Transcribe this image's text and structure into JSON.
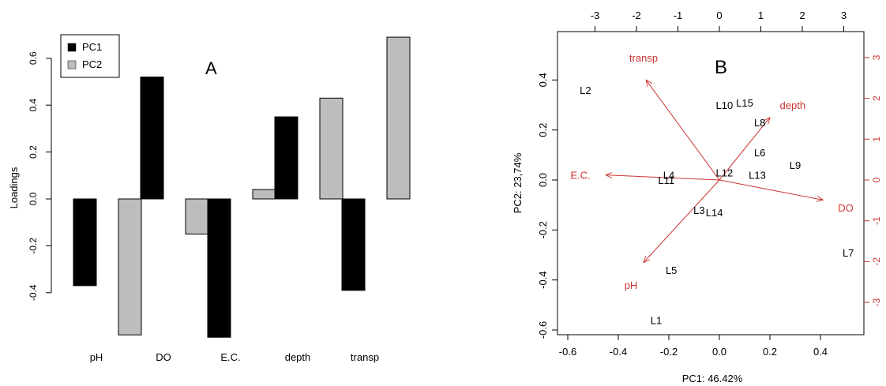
{
  "chart_data": [
    {
      "type": "bar",
      "panel_label": "A",
      "ylabel": "Loadings",
      "ylim": [
        -0.6,
        0.7
      ],
      "yticks": [
        "-0.4",
        "-0.2",
        "0.0",
        "0.2",
        "0.4",
        "0.6"
      ],
      "categories": [
        "pH",
        "DO",
        "E.C.",
        "depth",
        "transp"
      ],
      "series": [
        {
          "name": "PC1",
          "color": "#000000",
          "values": [
            -0.37,
            0.52,
            -0.59,
            0.35,
            -0.39
          ]
        },
        {
          "name": "PC2",
          "color": "#bdbdbd",
          "values": [
            -0.58,
            -0.15,
            0.04,
            0.43,
            0.69
          ]
        }
      ],
      "legend_position": "top-left"
    },
    {
      "type": "scatter",
      "subtype": "biplot",
      "panel_label": "B",
      "xlabel": "PC1: 46.42%",
      "ylabel": "PC2: 23,74%",
      "xlim": [
        -0.62,
        0.58
      ],
      "ylim": [
        -0.62,
        0.5
      ],
      "xticks": [
        "-0.6",
        "-0.4",
        "-0.2",
        "0.0",
        "0.2",
        "0.4"
      ],
      "yticks": [
        "-0.6",
        "-0.4",
        "-0.2",
        "0.0",
        "0.2",
        "0.4"
      ],
      "top_xticks": [
        "-3",
        "-2",
        "-1",
        "0",
        "1",
        "2",
        "3"
      ],
      "right_yticks": [
        "-3",
        "-2",
        "-1",
        "0",
        "1",
        "2",
        "3"
      ],
      "points": [
        {
          "label": "L1",
          "x": -0.25,
          "y": -0.56
        },
        {
          "label": "L2",
          "x": -0.53,
          "y": 0.36
        },
        {
          "label": "L3",
          "x": -0.08,
          "y": -0.12
        },
        {
          "label": "L4",
          "x": -0.2,
          "y": 0.02
        },
        {
          "label": "L5",
          "x": -0.19,
          "y": -0.36
        },
        {
          "label": "L6",
          "x": 0.16,
          "y": 0.11
        },
        {
          "label": "L7",
          "x": 0.51,
          "y": -0.29
        },
        {
          "label": "L8",
          "x": 0.16,
          "y": 0.23
        },
        {
          "label": "L9",
          "x": 0.3,
          "y": 0.06
        },
        {
          "label": "L10",
          "x": 0.02,
          "y": 0.3
        },
        {
          "label": "L11",
          "x": -0.21,
          "y": 0.0
        },
        {
          "label": "L12",
          "x": 0.02,
          "y": 0.03
        },
        {
          "label": "L13",
          "x": 0.15,
          "y": 0.02
        },
        {
          "label": "L14",
          "x": -0.02,
          "y": -0.13
        },
        {
          "label": "L15",
          "x": 0.1,
          "y": 0.31
        }
      ],
      "vectors": [
        {
          "label": "transp",
          "x": -0.29,
          "y": 0.4,
          "label_x": -0.3,
          "label_y": 0.49
        },
        {
          "label": "depth",
          "x": 0.2,
          "y": 0.25,
          "label_x": 0.29,
          "label_y": 0.3
        },
        {
          "label": "E.C.",
          "x": -0.45,
          "y": 0.02,
          "label_x": -0.55,
          "label_y": 0.02
        },
        {
          "label": "DO",
          "x": 0.41,
          "y": -0.08,
          "label_x": 0.5,
          "label_y": -0.11
        },
        {
          "label": "pH",
          "x": -0.3,
          "y": -0.33,
          "label_x": -0.35,
          "label_y": -0.42
        }
      ],
      "vector_color": "#cc3333"
    }
  ]
}
